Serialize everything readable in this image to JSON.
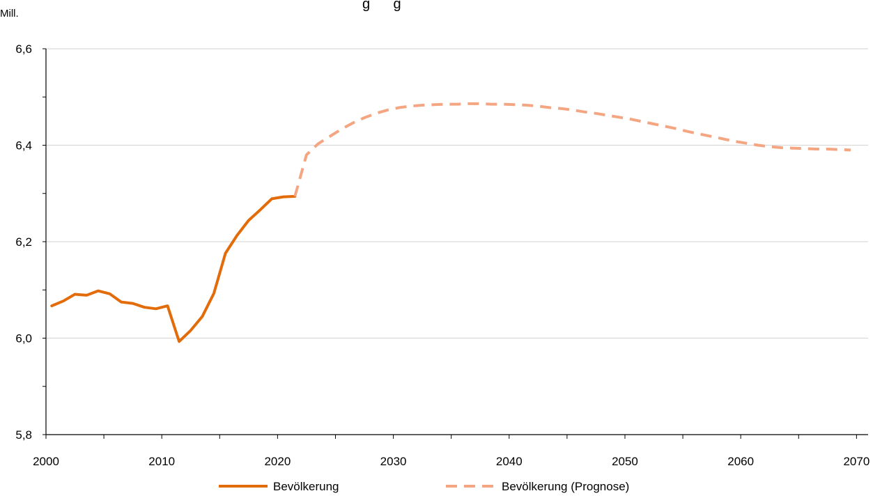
{
  "chart_data": {
    "type": "line",
    "title_fragment": "g      g",
    "unit_label": "Mill.",
    "ylim": [
      5.8,
      6.6
    ],
    "xlim": [
      2000,
      2071
    ],
    "yticks": [
      "5,8",
      "6,0",
      "6,2",
      "6,4",
      "6,6"
    ],
    "ytick_values": [
      5.8,
      6.0,
      6.2,
      6.4,
      6.6
    ],
    "xticks": [
      "2000",
      "2010",
      "2020",
      "2030",
      "2040",
      "2050",
      "2060",
      "2070"
    ],
    "xtick_values": [
      2000,
      2010,
      2020,
      2030,
      2040,
      2050,
      2060,
      2070
    ],
    "grid": "horizontal",
    "legend_position": "bottom",
    "series": [
      {
        "name": "Bevölkerung",
        "color": "#E36C0A",
        "style": "solid",
        "x": [
          2000.5,
          2001.5,
          2002.5,
          2003.5,
          2004.5,
          2005.5,
          2006.5,
          2007.5,
          2008.5,
          2009.5,
          2010.5,
          2011.5,
          2012.5,
          2013.5,
          2014.5,
          2015.5,
          2016.5,
          2017.5,
          2018.5,
          2019.5,
          2020.5,
          2021.5
        ],
        "y": [
          6.067,
          6.077,
          6.091,
          6.089,
          6.098,
          6.092,
          6.075,
          6.072,
          6.064,
          6.061,
          6.067,
          5.993,
          6.016,
          6.045,
          6.093,
          6.176,
          6.213,
          6.244,
          6.266,
          6.289,
          6.293,
          6.294
        ]
      },
      {
        "name": "Bevölkerung (Prognose)",
        "color": "#F4A582",
        "style": "dashed",
        "x": [
          2021.5,
          2022.5,
          2023.5,
          2024.5,
          2025.5,
          2026.5,
          2027.5,
          2028.5,
          2029.5,
          2030.5,
          2031.5,
          2032.5,
          2033.5,
          2034.5,
          2035.5,
          2036.5,
          2037.5,
          2038.5,
          2039.5,
          2040.5,
          2041.5,
          2042.5,
          2043.5,
          2044.5,
          2045.5,
          2046.5,
          2047.5,
          2048.5,
          2049.5,
          2050.5,
          2051.5,
          2052.5,
          2053.5,
          2054.5,
          2055.5,
          2056.5,
          2057.5,
          2058.5,
          2059.5,
          2060.5,
          2061.5,
          2062.5,
          2063.5,
          2064.5,
          2065.5,
          2066.5,
          2067.5,
          2068.5,
          2069.5
        ],
        "y": [
          6.294,
          6.38,
          6.403,
          6.418,
          6.433,
          6.446,
          6.457,
          6.466,
          6.473,
          6.478,
          6.481,
          6.483,
          6.484,
          6.485,
          6.485,
          6.486,
          6.486,
          6.485,
          6.485,
          6.484,
          6.483,
          6.481,
          6.478,
          6.476,
          6.473,
          6.469,
          6.466,
          6.462,
          6.458,
          6.454,
          6.449,
          6.444,
          6.439,
          6.434,
          6.428,
          6.423,
          6.418,
          6.413,
          6.408,
          6.404,
          6.4,
          6.397,
          6.395,
          6.394,
          6.393,
          6.392,
          6.392,
          6.391,
          6.39
        ]
      }
    ]
  }
}
